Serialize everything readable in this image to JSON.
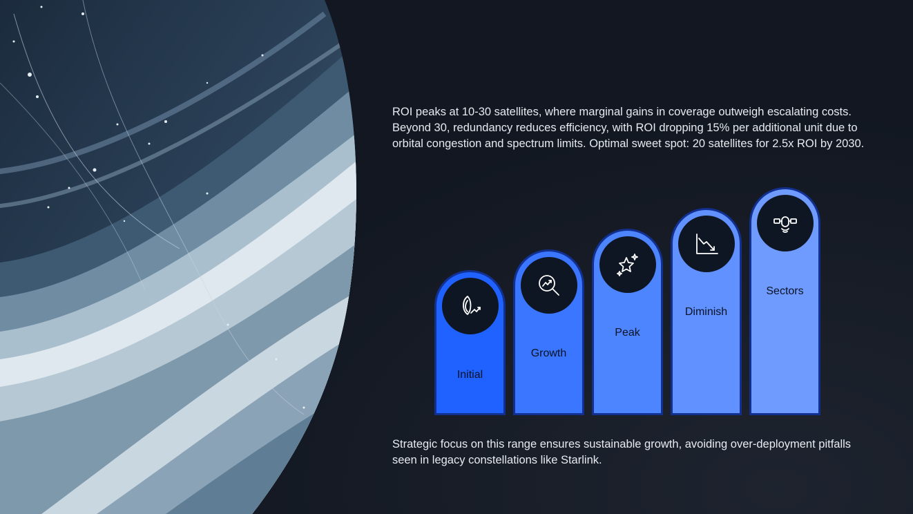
{
  "intro_text": "ROI peaks at 10-30 satellites, where marginal gains in coverage outweigh escalating costs. Beyond 30, redundancy reduces efficiency, with ROI dropping 15% per additional unit due to orbital congestion and spectrum limits. Optimal sweet spot: 20 satellites for 2.5x ROI by 2030.",
  "stages": [
    {
      "label": "Initial",
      "icon": "seed-growth-icon",
      "color": "#1f62ff"
    },
    {
      "label": "Growth",
      "icon": "magnifier-trend-icon",
      "color": "#3a76ff"
    },
    {
      "label": "Peak",
      "icon": "sparkle-star-icon",
      "color": "#4d85ff"
    },
    {
      "label": "Diminish",
      "icon": "declining-chart-icon",
      "color": "#6091ff"
    },
    {
      "label": "Sectors",
      "icon": "satellite-icon",
      "color": "#6f9bff"
    }
  ],
  "closing_text": "Strategic focus on this range ensures sustainable growth, avoiding over-deployment pitfalls seen in legacy constellations like Starlink."
}
